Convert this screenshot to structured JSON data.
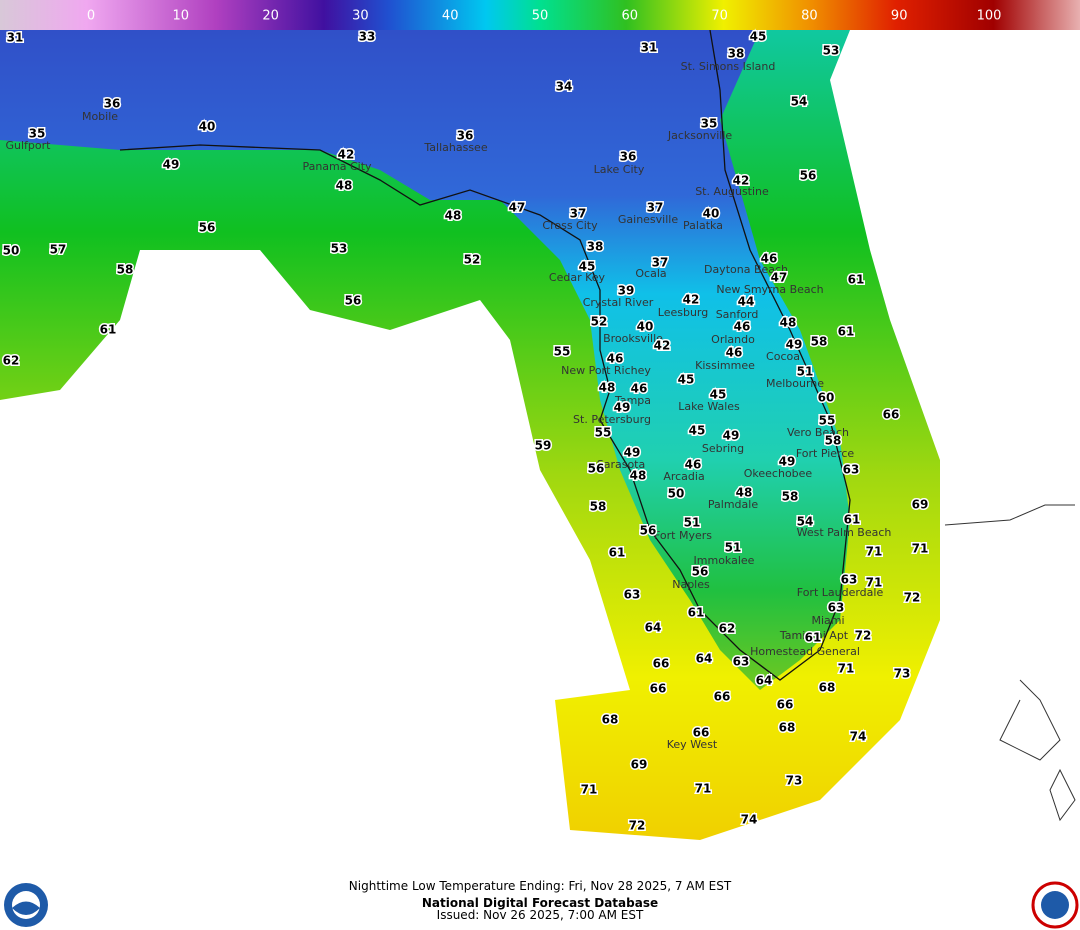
{
  "colorbar": {
    "ticks": [
      0,
      10,
      20,
      30,
      40,
      50,
      60,
      70,
      80,
      90,
      100
    ]
  },
  "cities": [
    "Mobile",
    "Gulfport",
    "Panama City",
    "Tallahassee",
    "St. Simons Island",
    "Jacksonville",
    "Lake City",
    "St. Augustine",
    "Gainesville",
    "Palatka",
    "Cross City",
    "Ocala",
    "Cedar Key",
    "Daytona Beach",
    "New Smyrna Beach",
    "Crystal River",
    "Leesburg",
    "Sanford",
    "Brooksville",
    "Orlando",
    "Cocoa",
    "New Port Richey",
    "Kissimmee",
    "Melbourne",
    "Tampa",
    "Lake Wales",
    "St. Petersburg",
    "Vero Beach",
    "Sebring",
    "Fort Pierce",
    "Sarasota",
    "Okeechobee",
    "Arcadia",
    "Palmdale",
    "West Palm Beach",
    "Fort Myers",
    "Immokalee",
    "Naples",
    "Fort Lauderdale",
    "Miami",
    "Tamiami Apt",
    "Homestead General",
    "Key West"
  ],
  "temperatures": [
    31,
    33,
    31,
    38,
    45,
    53,
    34,
    36,
    54,
    35,
    40,
    36,
    35,
    49,
    42,
    36,
    56,
    42,
    48,
    47,
    48,
    37,
    37,
    40,
    56,
    38,
    53,
    52,
    50,
    57,
    37,
    45,
    46,
    58,
    47,
    61,
    56,
    39,
    42,
    44,
    52,
    61,
    48,
    40,
    46,
    61,
    42,
    58,
    49,
    55,
    46,
    46,
    51,
    62,
    45,
    48,
    46,
    45,
    60,
    49,
    55,
    66,
    45,
    49,
    55,
    58,
    59,
    49,
    49,
    63,
    56,
    46,
    48,
    50,
    48,
    58,
    58,
    69,
    61,
    54,
    51,
    56,
    51,
    71,
    71,
    61,
    56,
    63,
    71,
    63,
    72,
    63,
    61,
    64,
    62,
    72,
    61,
    66,
    64,
    63,
    71,
    73,
    66,
    64,
    68,
    66,
    66,
    68,
    66,
    68,
    74,
    69,
    73,
    71,
    71,
    74,
    72
  ],
  "footer": {
    "line1": "Nighttime Low Temperature Ending: Fri, Nov 28 2025, 7 AM EST",
    "line2": "National Digital Forecast Database",
    "line3": "Issued: Nov 26 2025, 7:00 AM EST"
  }
}
